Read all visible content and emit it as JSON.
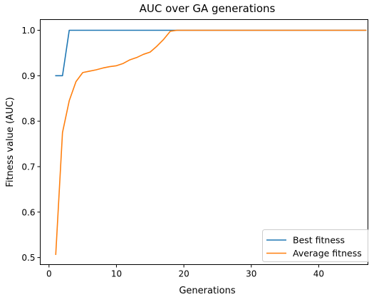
{
  "chart_data": {
    "type": "line",
    "title": "AUC over GA generations",
    "xlabel": "Generations",
    "ylabel": "Fitness value (AUC)",
    "xlim": [
      -1.3,
      47.3
    ],
    "ylim": [
      0.4845,
      1.0235
    ],
    "xticks": [
      0,
      10,
      20,
      30,
      40
    ],
    "yticks": [
      0.5,
      0.6,
      0.7,
      0.8,
      0.9,
      1.0
    ],
    "ytick_labels": [
      "0.5",
      "0.6",
      "0.7",
      "0.8",
      "0.9",
      "1.0"
    ],
    "grid": false,
    "legend_position": "lower-right",
    "series": [
      {
        "name": "Best fitness",
        "color": "#1f77b4",
        "x": [
          1,
          2,
          3,
          4,
          5,
          6,
          7,
          8,
          9,
          10,
          11,
          12,
          13,
          14,
          15,
          16,
          17,
          18,
          19,
          20,
          21,
          22,
          23,
          24,
          25,
          26,
          27,
          28,
          29,
          30,
          31,
          32,
          33,
          34,
          35,
          36,
          37,
          38,
          39,
          40,
          41,
          42,
          43,
          44,
          45,
          46,
          47
        ],
        "y": [
          0.9,
          0.9,
          1.0,
          1.0,
          1.0,
          1.0,
          1.0,
          1.0,
          1.0,
          1.0,
          1.0,
          1.0,
          1.0,
          1.0,
          1.0,
          1.0,
          1.0,
          1.0,
          1.0,
          1.0,
          1.0,
          1.0,
          1.0,
          1.0,
          1.0,
          1.0,
          1.0,
          1.0,
          1.0,
          1.0,
          1.0,
          1.0,
          1.0,
          1.0,
          1.0,
          1.0,
          1.0,
          1.0,
          1.0,
          1.0,
          1.0,
          1.0,
          1.0,
          1.0,
          1.0,
          1.0,
          1.0
        ]
      },
      {
        "name": "Average fitness",
        "color": "#ff7f0e",
        "x": [
          1,
          2,
          3,
          4,
          5,
          6,
          7,
          8,
          9,
          10,
          11,
          12,
          13,
          14,
          15,
          16,
          17,
          18,
          19,
          20,
          21,
          22,
          23,
          24,
          25,
          26,
          27,
          28,
          29,
          30,
          31,
          32,
          33,
          34,
          35,
          36,
          37,
          38,
          39,
          40,
          41,
          42,
          43,
          44,
          45,
          46,
          47
        ],
        "y": [
          0.507,
          0.775,
          0.845,
          0.887,
          0.907,
          0.91,
          0.913,
          0.917,
          0.92,
          0.922,
          0.927,
          0.935,
          0.94,
          0.947,
          0.952,
          0.965,
          0.98,
          0.998,
          1.0,
          1.0,
          1.0,
          1.0,
          1.0,
          1.0,
          1.0,
          1.0,
          1.0,
          1.0,
          1.0,
          1.0,
          1.0,
          1.0,
          1.0,
          1.0,
          1.0,
          1.0,
          1.0,
          1.0,
          1.0,
          1.0,
          1.0,
          1.0,
          1.0,
          1.0,
          1.0,
          1.0,
          1.0
        ]
      }
    ]
  }
}
